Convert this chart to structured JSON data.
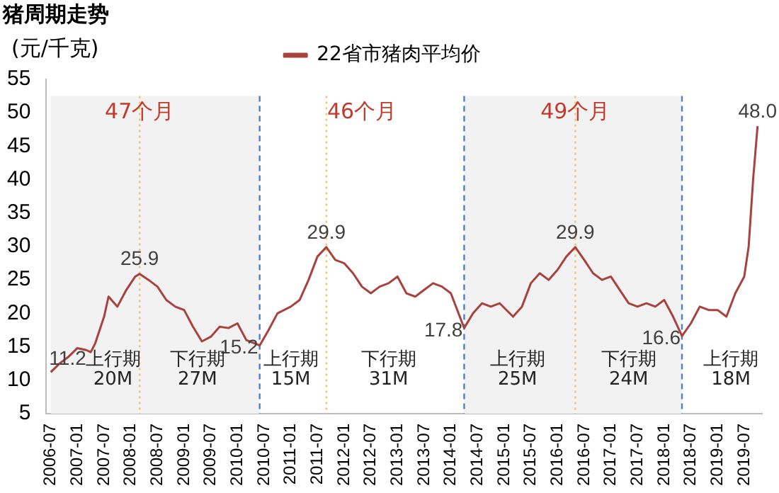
{
  "chart_data": {
    "type": "line",
    "title": "猪周期走势",
    "ylabel": "(元/千克)",
    "x": [
      "2006-07",
      "2006-09",
      "2006-11",
      "2007-01",
      "2007-03",
      "2007-04",
      "2007-05",
      "2007-07",
      "2007-08",
      "2007-10",
      "2007-12",
      "2008-02",
      "2008-03",
      "2008-05",
      "2008-07",
      "2008-09",
      "2008-11",
      "2009-01",
      "2009-03",
      "2009-05",
      "2009-07",
      "2009-09",
      "2009-11",
      "2010-01",
      "2010-03",
      "2010-06",
      "2010-08",
      "2010-10",
      "2011-01",
      "2011-03",
      "2011-05",
      "2011-07",
      "2011-09",
      "2011-11",
      "2012-01",
      "2012-03",
      "2012-05",
      "2012-07",
      "2012-09",
      "2012-11",
      "2013-01",
      "2013-03",
      "2013-05",
      "2013-07",
      "2013-09",
      "2013-11",
      "2014-01",
      "2014-04",
      "2014-06",
      "2014-08",
      "2014-10",
      "2014-12",
      "2015-03",
      "2015-05",
      "2015-07",
      "2015-09",
      "2015-11",
      "2016-01",
      "2016-03",
      "2016-05",
      "2016-07",
      "2016-09",
      "2016-11",
      "2017-01",
      "2017-03",
      "2017-05",
      "2017-07",
      "2017-09",
      "2017-11",
      "2018-01",
      "2018-03",
      "2018-05",
      "2018-07",
      "2018-09",
      "2018-11",
      "2019-01",
      "2019-03",
      "2019-05",
      "2019-07",
      "2019-08",
      "2019-09",
      "2019-10"
    ],
    "series": [
      {
        "name": "22省市猪肉平均价",
        "color": "#a8423f",
        "values": [
          11.2,
          12.5,
          13.5,
          14.8,
          14.5,
          14.2,
          15.5,
          19.5,
          22.5,
          21,
          23.5,
          25.5,
          25.9,
          25,
          24,
          22,
          21,
          20.5,
          18,
          15.8,
          16.5,
          18,
          17.8,
          18.5,
          16,
          15.2,
          17.5,
          20,
          21,
          22,
          25,
          28.5,
          29.9,
          28,
          27.5,
          26,
          24,
          23,
          24,
          24.5,
          25.5,
          23,
          22.5,
          23.5,
          24.5,
          24,
          23,
          17.8,
          20,
          21.5,
          21,
          21.5,
          19.5,
          21,
          24.5,
          26,
          25,
          26.5,
          28.5,
          29.9,
          28,
          26,
          25,
          25.5,
          23.5,
          21.5,
          21,
          21.5,
          21,
          22,
          19.5,
          16.6,
          18.5,
          21,
          20.5,
          20.5,
          19.5,
          23,
          25.5,
          30,
          40,
          48.0
        ]
      }
    ],
    "xlim": [
      "2006-06",
      "2019-11"
    ],
    "xticks": [
      "2006-07",
      "2007-01",
      "2007-07",
      "2008-01",
      "2008-07",
      "2009-01",
      "2009-07",
      "2010-01",
      "2010-07",
      "2011-01",
      "2011-07",
      "2012-01",
      "2012-07",
      "2013-01",
      "2013-07",
      "2014-01",
      "2014-07",
      "2015-01",
      "2015-07",
      "2016-01",
      "2016-07",
      "2017-01",
      "2017-07",
      "2018-01",
      "2018-07",
      "2019-01",
      "2019-07"
    ],
    "ylim": [
      5,
      55
    ],
    "yticks": [
      5,
      10,
      15,
      20,
      25,
      30,
      35,
      40,
      45,
      50,
      55
    ],
    "grid": false,
    "legend": "top",
    "marker": "none",
    "line_style": "solid",
    "bands": [
      {
        "axis": "x",
        "from": "2006-07",
        "to": "2010-06",
        "color": "#f2f2f2"
      },
      {
        "axis": "x",
        "from": "2014-04",
        "to": "2018-05",
        "color": "#f2f2f2"
      }
    ],
    "ref_lines": [
      {
        "axis": "x",
        "value": "2010-06",
        "color": "#4f81bd",
        "line_style": "dashed"
      },
      {
        "axis": "x",
        "value": "2014-04",
        "color": "#4f81bd",
        "line_style": "dashed"
      },
      {
        "axis": "x",
        "value": "2018-05",
        "color": "#4f81bd",
        "line_style": "dashed"
      },
      {
        "axis": "x",
        "value": "2008-03",
        "color": "#f5c26b",
        "line_style": "dotted"
      },
      {
        "axis": "x",
        "value": "2011-09",
        "color": "#f5c26b",
        "line_style": "dotted"
      },
      {
        "axis": "x",
        "value": "2016-05",
        "color": "#f5c26b",
        "line_style": "dotted"
      }
    ],
    "annotations": [
      {
        "text": "11.2",
        "x": "2006-07",
        "y": 11.2
      },
      {
        "text": "25.9",
        "x": "2008-03",
        "y": 25.9
      },
      {
        "text": "15.2",
        "x": "2010-06",
        "y": 15.2
      },
      {
        "text": "29.9",
        "x": "2011-09",
        "y": 29.9
      },
      {
        "text": "17.8",
        "x": "2014-04",
        "y": 17.8
      },
      {
        "text": "29.9",
        "x": "2016-05",
        "y": 29.9
      },
      {
        "text": "16.6",
        "x": "2018-05",
        "y": 16.6
      },
      {
        "text": "48.0",
        "x": "2019-10",
        "y": 48.0
      },
      "47个月",
      "46个月",
      "49个月",
      "上行期",
      "20M",
      "下行期",
      "27M",
      "上行期",
      "15M",
      "下行期",
      "31M",
      "上行期",
      "25M",
      "下行期",
      "24M",
      "上行期",
      "18M"
    ]
  }
}
